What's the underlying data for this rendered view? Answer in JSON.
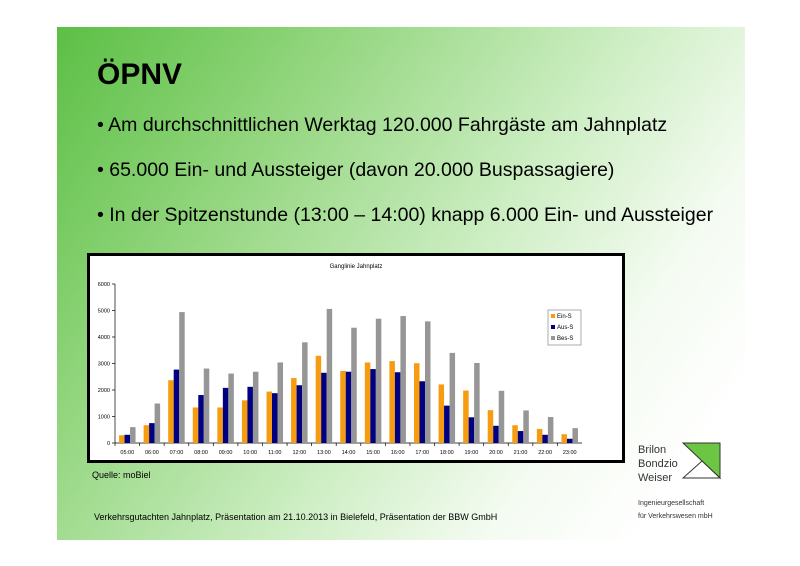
{
  "slide": {
    "title": "ÖPNV",
    "bullets": [
      "• Am durchschnittlichen Werktag 120.000 Fahrgäste am Jahnplatz",
      "• 65.000 Ein- und Aussteiger (davon 20.000 Buspassagiere)",
      "• In der Spitzenstunde (13:00 – 14:00) knapp 6.000 Ein- und Aussteiger"
    ],
    "source": "Quelle: moBiel",
    "footer": "Verkehrsgutachten Jahnplatz, Präsentation am 21.10.2013 in Bielefeld, Präsentation der BBW GmbH",
    "logo": {
      "lines": [
        "Brilon",
        "Bondzio",
        "Weiser"
      ],
      "sub1": "Ingenieurgesellschaft",
      "sub2": "für Verkehrswesen mbH"
    },
    "background_color": "#5cbf45"
  },
  "chart_data": {
    "type": "bar",
    "title": "Ganglinie Jahnplatz",
    "xlabel": "",
    "ylabel": "",
    "ylim": [
      0,
      6000
    ],
    "yticks": [
      0,
      1000,
      2000,
      3000,
      4000,
      5000,
      6000
    ],
    "grid": false,
    "legend": "right",
    "categories": [
      "05:00",
      "06:00",
      "07:00",
      "08:00",
      "09:00",
      "10:00",
      "11:00",
      "12:00",
      "13:00",
      "14:00",
      "15:00",
      "16:00",
      "17:00",
      "18:00",
      "19:00",
      "20:00",
      "21:00",
      "22:00",
      "23:00"
    ],
    "series": [
      {
        "name": "Ein-S",
        "color": "#f59c10",
        "values": [
          290,
          670,
          2370,
          1340,
          1340,
          1610,
          1940,
          2450,
          3290,
          2720,
          3040,
          3090,
          3010,
          2210,
          1980,
          1240,
          670,
          530,
          330
        ]
      },
      {
        "name": "Aus-S",
        "color": "#000080",
        "values": [
          310,
          750,
          2770,
          1810,
          2080,
          2120,
          1880,
          2180,
          2650,
          2690,
          2790,
          2670,
          2330,
          1410,
          970,
          650,
          450,
          310,
          160
        ]
      },
      {
        "name": "Bes-S",
        "color": "#969696",
        "values": [
          600,
          1490,
          4940,
          2810,
          2620,
          2690,
          3040,
          3800,
          5060,
          4350,
          4690,
          4790,
          4590,
          3400,
          3020,
          1970,
          1230,
          980,
          560
        ]
      }
    ]
  }
}
